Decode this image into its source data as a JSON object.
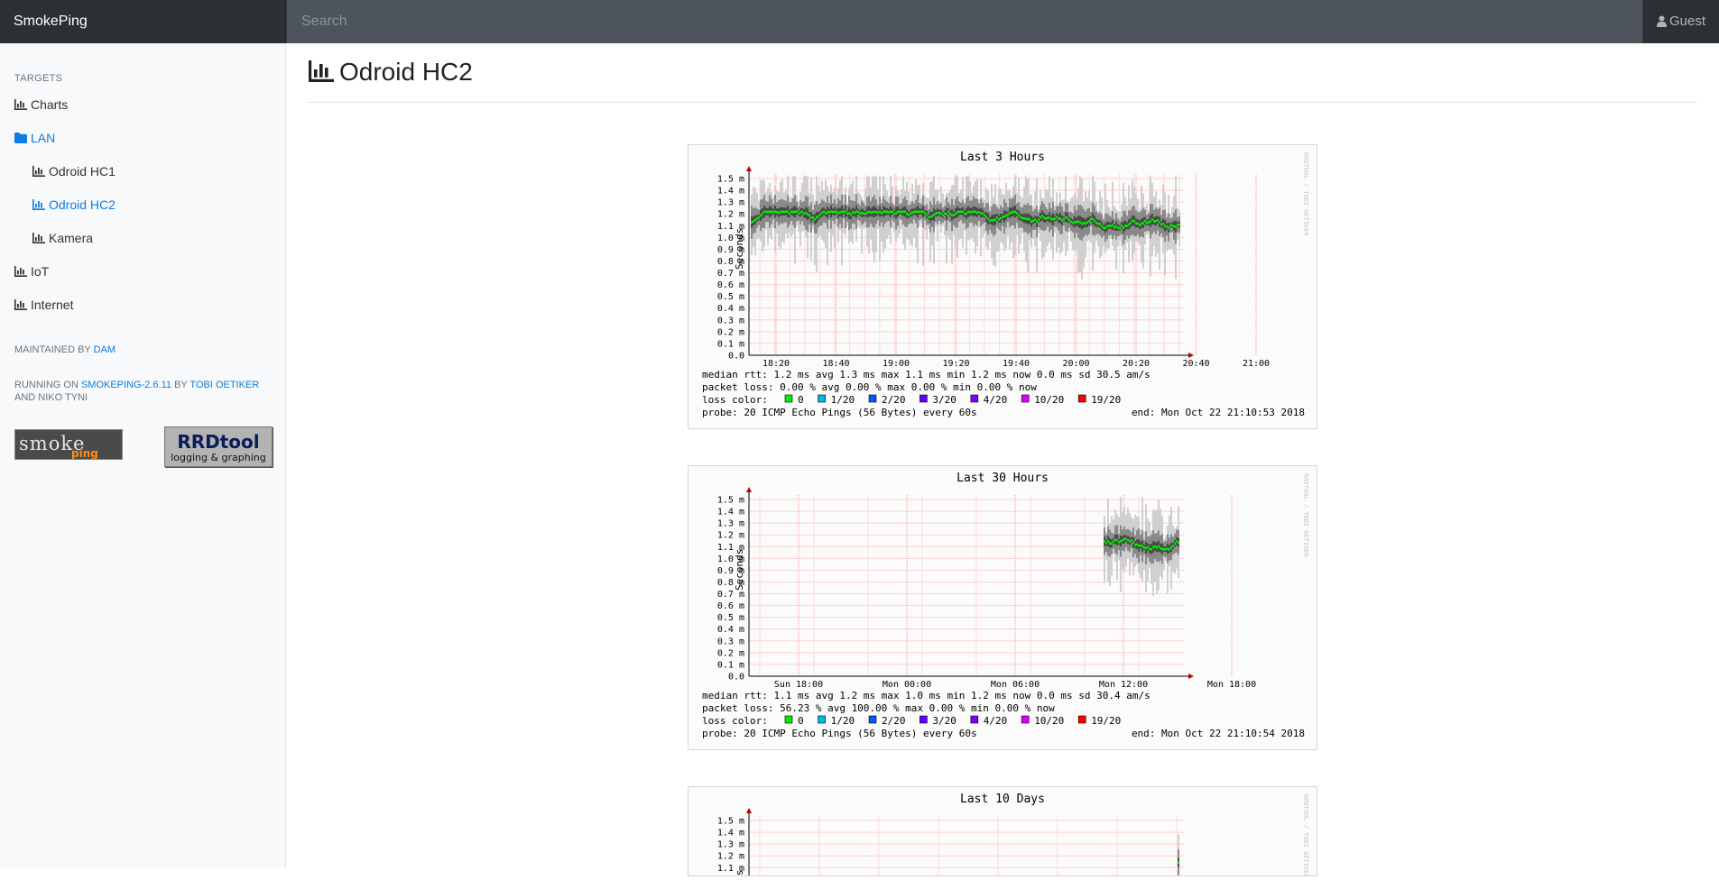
{
  "brand": "SmokePing",
  "search": {
    "placeholder": "Search"
  },
  "user": {
    "label": "Guest"
  },
  "sidebar": {
    "heading": "TARGETS",
    "items": [
      {
        "label": "Charts",
        "icon": "chart-icon"
      },
      {
        "label": "LAN",
        "icon": "folder-icon"
      },
      {
        "label": "Odroid HC1",
        "icon": "chart-icon"
      },
      {
        "label": "Odroid HC2",
        "icon": "chart-icon"
      },
      {
        "label": "Kamera",
        "icon": "chart-icon"
      },
      {
        "label": "IoT",
        "icon": "chart-icon"
      },
      {
        "label": "Internet",
        "icon": "chart-icon"
      }
    ],
    "maintained_prefix": "MAINTAINED BY",
    "maintained_link": "DAM",
    "running_prefix": "RUNNING ON",
    "running_link": "SMOKEPING-2.6.11",
    "running_by": "BY",
    "running_author_link": "TOBI OETIKER",
    "running_suffix": "AND NIKO TYNI",
    "logo_smoke_text": "smoke ping",
    "logo_rrd_title": "RRDtool",
    "logo_rrd_sub": "logging & graphing"
  },
  "page": {
    "title": "Odroid HC2"
  },
  "colors": {
    "accent": "#0f7ce0",
    "median": "#00ee00",
    "grid": "#ff9999"
  },
  "graphs": [
    {
      "title": "Last 3 Hours",
      "ylabel": "Seconds",
      "yticks": [
        "1.5 m",
        "1.4 m",
        "1.3 m",
        "1.2 m",
        "1.1 m",
        "1.0 m",
        "0.9 m",
        "0.8 m",
        "0.7 m",
        "0.6 m",
        "0.5 m",
        "0.4 m",
        "0.3 m",
        "0.2 m",
        "0.1 m",
        "0.0"
      ],
      "xticks": [
        "18:20",
        "18:40",
        "19:00",
        "19:20",
        "19:40",
        "20:00",
        "20:20",
        "20:40",
        "21:00"
      ],
      "median_rtt": "median rtt:  1.2 ms avg  1.3 ms max  1.1 ms min  1.2 ms now  0.0 ms sd  30.5   am/s",
      "packet_loss": "packet loss: 0.00 % avg  0.00 % max  0.00 % min  0.00 % now",
      "loss_label": "loss color:",
      "loss_legend": [
        "0",
        "1/20",
        "2/20",
        "3/20",
        "4/20",
        "10/20",
        "19/20"
      ],
      "probe": "probe:       20 ICMP Echo Pings (56 Bytes) every 60s",
      "end": "end: Mon Oct 22 21:10:53 2018",
      "watermark": "RRDTOOL / TOBI OETIKER"
    },
    {
      "title": "Last 30 Hours",
      "ylabel": "Seconds",
      "yticks": [
        "1.5 m",
        "1.4 m",
        "1.3 m",
        "1.2 m",
        "1.1 m",
        "1.0 m",
        "0.9 m",
        "0.8 m",
        "0.7 m",
        "0.6 m",
        "0.5 m",
        "0.4 m",
        "0.3 m",
        "0.2 m",
        "0.1 m",
        "0.0"
      ],
      "xticks": [
        "Sun 18:00",
        "Mon 00:00",
        "Mon 06:00",
        "Mon 12:00",
        "Mon 18:00"
      ],
      "median_rtt": "median rtt:  1.1 ms avg  1.2 ms max  1.0 ms min  1.2 ms now  0.0 ms sd  30.4   am/s",
      "packet_loss": "packet loss: 56.23 % avg  100.00 % max  0.00 % min  0.00 % now",
      "loss_label": "loss color:",
      "loss_legend": [
        "0",
        "1/20",
        "2/20",
        "3/20",
        "4/20",
        "10/20",
        "19/20"
      ],
      "probe": "probe:       20 ICMP Echo Pings (56 Bytes) every 60s",
      "end": "end: Mon Oct 22 21:10:54 2018",
      "watermark": "RRDTOOL / TOBI OETIKER"
    },
    {
      "title": "Last 10 Days",
      "ylabel": "Seconds",
      "yticks": [
        "1.5 m",
        "1.4 m",
        "1.3 m",
        "1.2 m",
        "1.1 m"
      ],
      "xticks": [],
      "median_rtt": "",
      "packet_loss": "",
      "loss_label": "",
      "loss_legend": [],
      "probe": "",
      "end": "",
      "watermark": "RRDTOOL / TOBI OETIKER"
    }
  ],
  "loss_colors": [
    "#00ee00",
    "#00b8e6",
    "#0059ff",
    "#5e00ff",
    "#7e00ff",
    "#dd00ff",
    "#ff0000"
  ]
}
